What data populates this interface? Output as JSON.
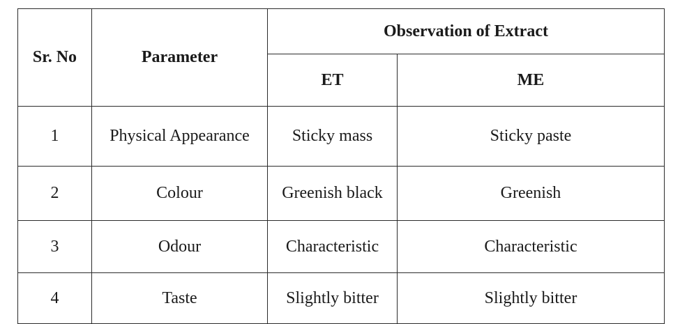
{
  "table": {
    "headers": {
      "sr_no": "Sr. No",
      "parameter": "Parameter",
      "group": "Observation of Extract",
      "et": "ET",
      "me": "ME"
    },
    "rows": [
      {
        "sr": "1",
        "parameter": "Physical Appearance",
        "et": "Sticky mass",
        "me": "Sticky paste"
      },
      {
        "sr": "2",
        "parameter": "Colour",
        "et": "Greenish black",
        "me": "Greenish"
      },
      {
        "sr": "3",
        "parameter": "Odour",
        "et": "Characteristic",
        "me": "Characteristic"
      },
      {
        "sr": "4",
        "parameter": "Taste",
        "et": "Slightly bitter",
        "me": "Slightly bitter"
      }
    ]
  }
}
